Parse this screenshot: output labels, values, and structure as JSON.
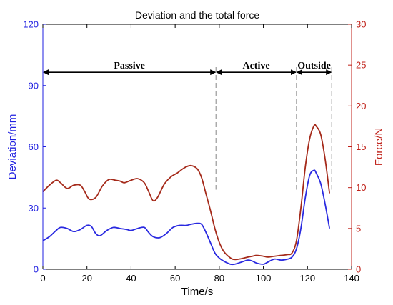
{
  "chart_data": {
    "type": "line",
    "title": "Deviation and the total force",
    "xlabel": "Time/s",
    "ylabel_left": "Deviation/mm",
    "ylabel_right": "Force/N",
    "xlim": [
      0,
      140
    ],
    "ylim_left": [
      0,
      120
    ],
    "ylim_right": [
      0,
      30
    ],
    "x_ticks": [
      0,
      20,
      40,
      60,
      80,
      100,
      120,
      140
    ],
    "y_left_ticks": [
      0,
      30,
      60,
      90,
      120
    ],
    "y_right_ticks": [
      0,
      5,
      10,
      15,
      20,
      25,
      30
    ],
    "grid": false,
    "colors": {
      "left_axis": "#1f1fe0",
      "right_axis": "#c0221a",
      "deviation": "#2a2ae0",
      "force": "#a52a1a",
      "divider": "#9a9a9a"
    },
    "series": [
      {
        "axis": "left",
        "color": "#2a2ae0",
        "x": [
          0,
          3,
          6,
          8,
          11,
          14,
          17,
          20,
          22,
          24,
          26,
          29,
          32,
          35,
          38,
          40,
          43,
          46,
          48,
          50,
          53,
          56,
          59,
          62,
          65,
          67,
          70,
          72,
          74,
          76,
          78,
          80,
          82,
          85,
          87,
          90,
          93,
          95,
          97,
          100,
          102,
          105,
          108,
          111,
          113,
          115,
          117,
          119,
          121,
          123,
          124,
          126,
          128,
          130
        ],
        "y": [
          14,
          16,
          19,
          20.5,
          20,
          18.5,
          19.5,
          21.5,
          21,
          17.5,
          16.5,
          19,
          20.5,
          20,
          19.5,
          19,
          20,
          20.5,
          18,
          16,
          15.5,
          17.5,
          20.5,
          21.5,
          21.5,
          22,
          22.5,
          22,
          18,
          13,
          8,
          5.5,
          4,
          2.5,
          2.5,
          3.5,
          4.5,
          4,
          3,
          2.5,
          3.5,
          5,
          4.5,
          5,
          6,
          10,
          20,
          35,
          46,
          48.5,
          47,
          42,
          32,
          20
        ]
      },
      {
        "axis": "right",
        "color": "#a52a1a",
        "x": [
          0,
          3,
          6,
          8,
          11,
          14,
          17,
          19,
          21,
          24,
          27,
          30,
          33,
          35,
          37,
          40,
          43,
          46,
          48,
          50,
          52,
          55,
          58,
          61,
          64,
          67,
          70,
          72,
          74,
          76,
          78,
          80,
          82,
          85,
          87,
          90,
          93,
          95,
          97,
          100,
          102,
          105,
          108,
          111,
          113,
          115,
          117,
          119,
          121,
          123,
          124,
          126,
          128,
          130
        ],
        "y": [
          9.5,
          10.3,
          10.9,
          10.6,
          9.9,
          10.3,
          10.3,
          9.5,
          8.6,
          8.8,
          10.2,
          11.0,
          10.9,
          10.8,
          10.6,
          10.9,
          11.1,
          10.6,
          9.5,
          8.4,
          8.8,
          10.4,
          11.3,
          11.8,
          12.4,
          12.7,
          12.3,
          11.2,
          9.2,
          7.2,
          5.0,
          3.3,
          2.2,
          1.4,
          1.2,
          1.3,
          1.5,
          1.6,
          1.7,
          1.6,
          1.5,
          1.6,
          1.7,
          1.8,
          2.0,
          3.5,
          7.5,
          12.5,
          16.0,
          17.6,
          17.5,
          16.5,
          13.5,
          9.3
        ]
      }
    ],
    "regions": [
      {
        "label": "Passive",
        "x_start": 0,
        "x_end": 78.5
      },
      {
        "label": "Active",
        "x_start": 78.5,
        "x_end": 115
      },
      {
        "label": "Outside",
        "x_start": 115,
        "x_end": 131
      }
    ],
    "dividers": [
      78.5,
      115,
      131
    ],
    "arrow_y": 96.5
  }
}
